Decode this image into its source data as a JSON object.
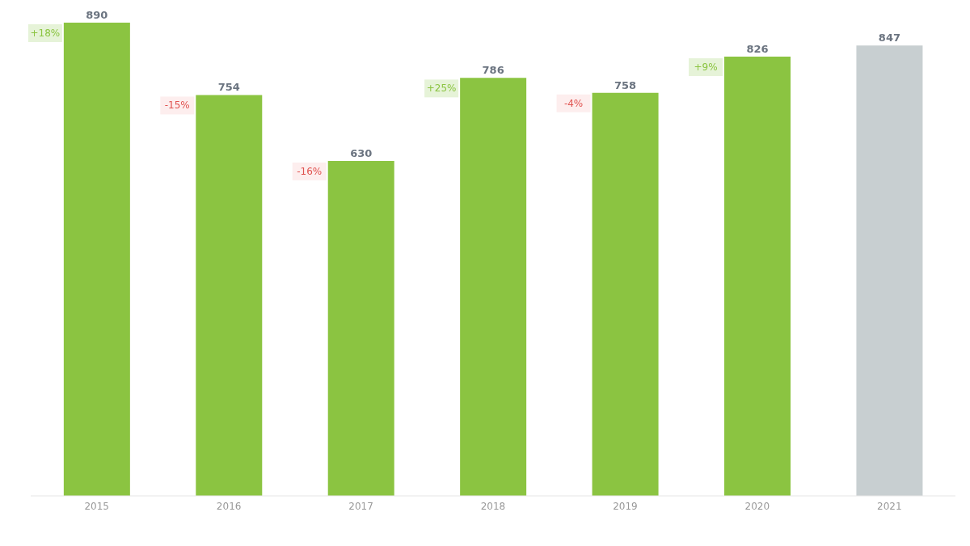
{
  "chart_data": {
    "type": "bar",
    "categories": [
      "2015",
      "2016",
      "2017",
      "2018",
      "2019",
      "2020",
      "2021"
    ],
    "values": [
      890,
      754,
      630,
      786,
      758,
      826,
      847
    ],
    "colors": [
      "#8bc441",
      "#8bc441",
      "#8bc441",
      "#8bc441",
      "#8bc441",
      "#8bc441",
      "#c8cfd1"
    ],
    "tick_labels": "x",
    "data_labels": true,
    "annotations": [
      "+18%",
      "-15%",
      "-16%",
      "+25%",
      "-4%",
      "+9%"
    ]
  }
}
